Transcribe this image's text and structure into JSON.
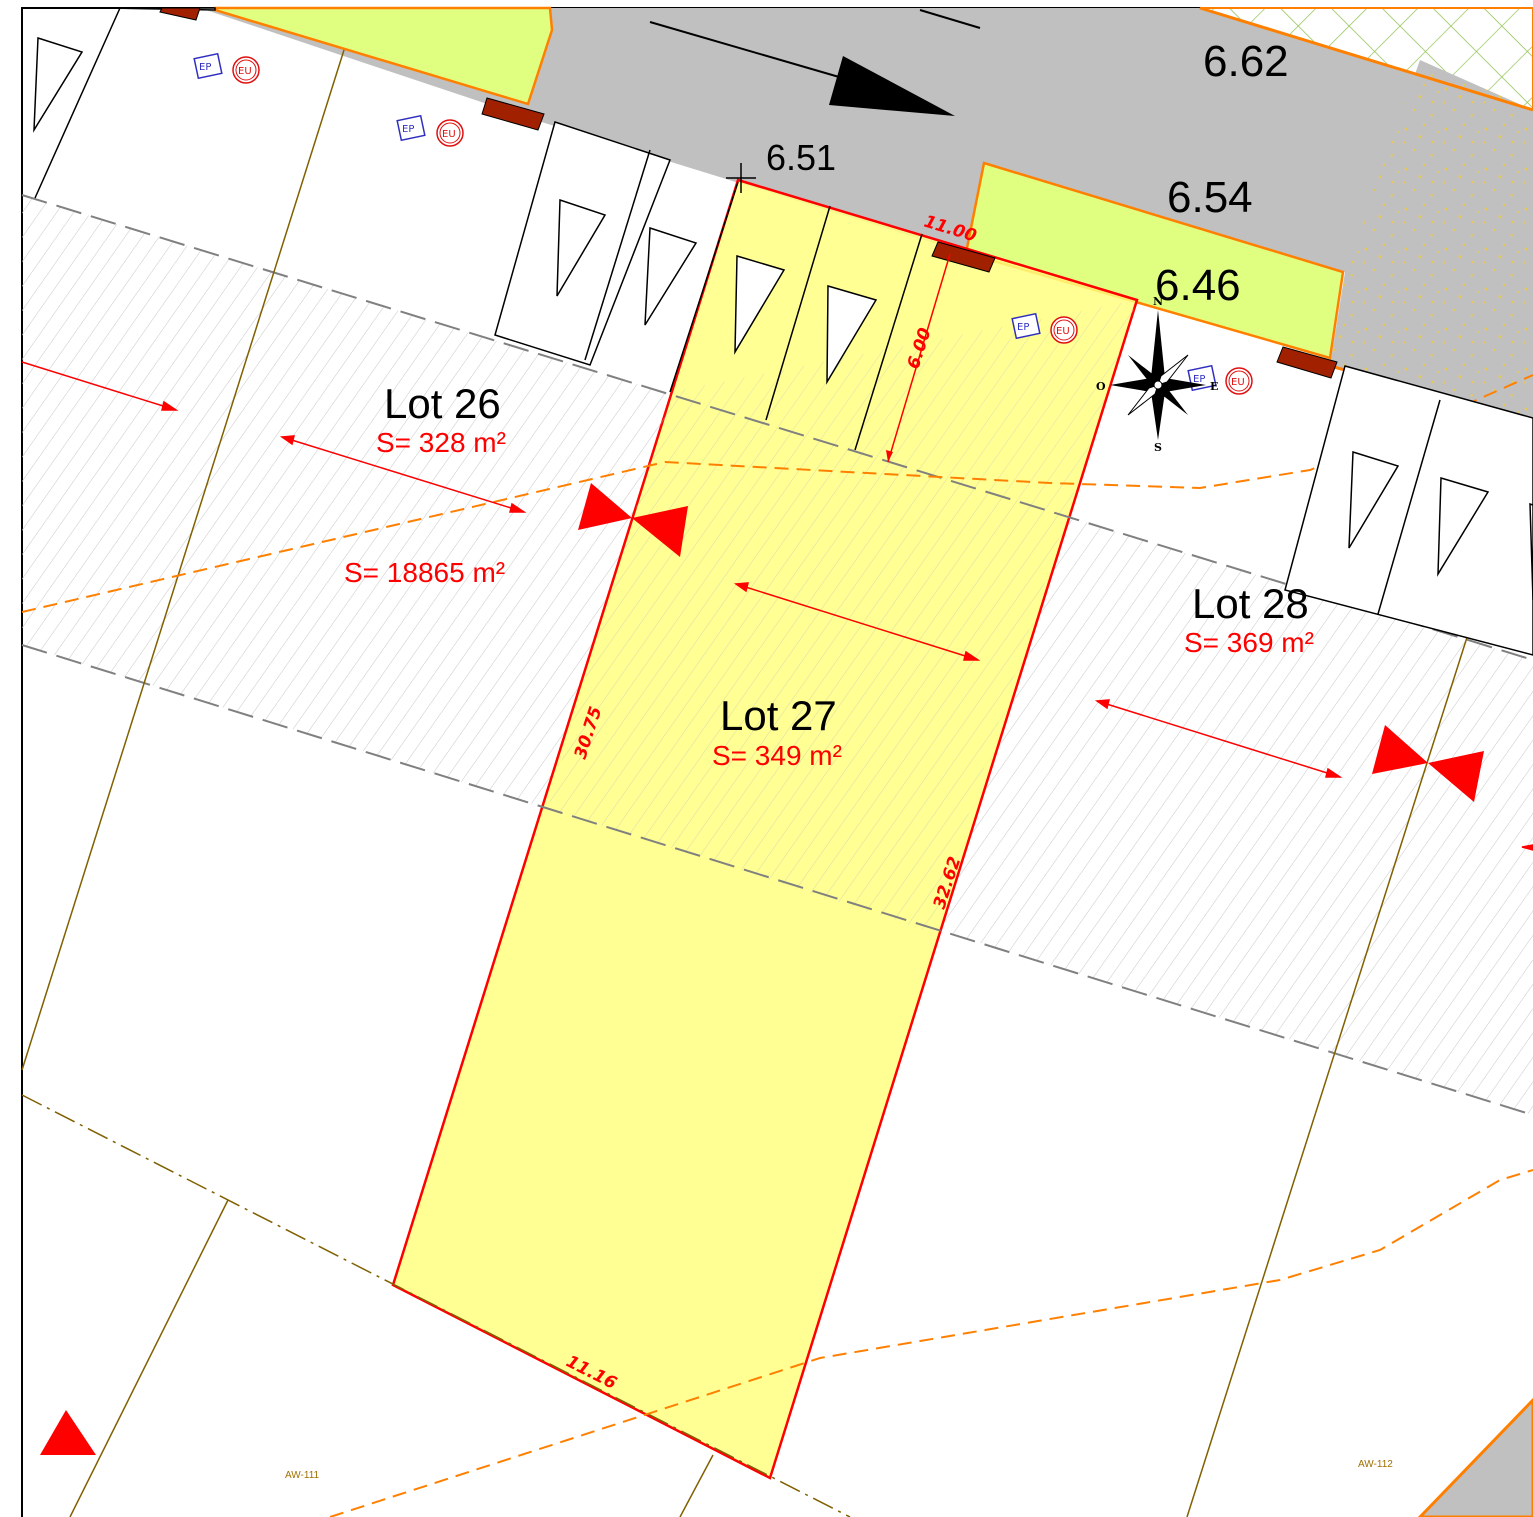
{
  "colors": {
    "lot_highlight": "#ffff80",
    "lot_border": "#ff0000",
    "green_space": "#e0ff80",
    "green_border": "#ff8000",
    "road": "#c0c0c0",
    "network": "#ff8000",
    "parcel_line": "#806000",
    "annotation_red": "#ff0000",
    "access_brown": "#a02000",
    "ep_blue": "#3030c0",
    "eu_red": "#e01010"
  },
  "elevations": {
    "e1": "6.62",
    "e2": "6.51",
    "e3": "6.54",
    "e4": "6.46"
  },
  "lots": [
    {
      "name": "Lot 26",
      "area": "S= 328 m²"
    },
    {
      "name": "Lot 27",
      "area": "S= 349 m²"
    },
    {
      "name": "Lot 28",
      "area": "S= 369 m²"
    }
  ],
  "zone_area": "S= 18865 m²",
  "dimensions": {
    "front": "11.00",
    "depth_access": "6.00",
    "left_side": "30.75",
    "right_side": "32.62",
    "back": "11.16"
  },
  "networks": {
    "ep": "EP",
    "eu": "EU"
  },
  "parcels": {
    "p1": "AW-111",
    "p2": "AW-112"
  },
  "compass": {
    "north": "N",
    "south": "S",
    "west": "O",
    "east": "E"
  },
  "icons": {
    "compass": "compass-rose-icon",
    "flow_arrow": "flow-direction-arrow-icon",
    "valve": "valve-icon",
    "parking": "parking-space-icon",
    "survey": "survey-point-cross-icon"
  }
}
